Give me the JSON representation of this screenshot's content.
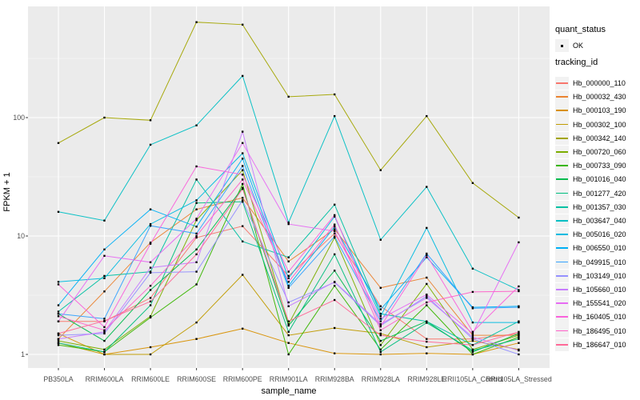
{
  "chart": {
    "y_axis": {
      "title": "FPKM + 1",
      "tick_labels": [
        "1",
        "10",
        "100"
      ]
    },
    "x_axis": {
      "title": "sample_name"
    },
    "legend": {
      "quant_status": {
        "title": "quant_status",
        "items": [
          {
            "label": "OK"
          }
        ]
      },
      "tracking_id": {
        "title": "tracking_id"
      }
    },
    "colors": {
      "panel_background": "#EBEBEB",
      "grid": "#FFFFFF",
      "point": "#000000",
      "axis_text": "#4d4d4d",
      "legend_key_background": "#F2F2F2"
    }
  },
  "chart_data": {
    "type": "line",
    "x_categories": [
      "PB350LA",
      "RRIM600LA",
      "RRIM600LE",
      "RRIM600SE",
      "RRIM600PE",
      "RRIM901LA",
      "RRIM928BA",
      "RRIM928LA",
      "RRIM928LE",
      "RRII105LA_Control",
      "RRII105LA_Stressed"
    ],
    "xlabel": "sample_name",
    "ylabel": "FPKM + 1",
    "y_scale": "log10",
    "y_major_ticks": [
      1,
      10,
      100
    ],
    "y_minor_ticks": [
      3.162,
      31.62,
      316.2
    ],
    "ylim": [
      0.95,
      870
    ],
    "grid": "on",
    "legend_position": "right",
    "point_shape": "square",
    "series": [
      {
        "name": "Hb_000000_110",
        "color": "#F8766D",
        "values": [
          1.9,
          1.9,
          3.0,
          9.7,
          12.1,
          4.6,
          10.5,
          2.55,
          1.35,
          1.35,
          1.5
        ]
      },
      {
        "name": "Hb_000032_430",
        "color": "#EA8331",
        "values": [
          1.35,
          3.4,
          8.8,
          16.8,
          21,
          6.1,
          11.4,
          3.65,
          4.45,
          1.45,
          1.45
        ]
      },
      {
        "name": "Hb_000103_190",
        "color": "#D89000",
        "values": [
          1.5,
          1.0,
          1.15,
          1.35,
          1.65,
          1.25,
          1.02,
          1.0,
          1.02,
          1.0,
          1.25
        ]
      },
      {
        "name": "Hb_000302_100",
        "color": "#C09B00",
        "values": [
          1.25,
          1.0,
          1.0,
          1.86,
          4.7,
          1.45,
          1.67,
          1.5,
          1.15,
          1.3,
          1.1
        ]
      },
      {
        "name": "Hb_000342_140",
        "color": "#A3A500",
        "values": [
          61,
          100,
          95,
          640,
          610,
          150,
          157,
          36,
          103,
          28,
          14.3
        ]
      },
      {
        "name": "Hb_000720_060",
        "color": "#7CAE00",
        "values": [
          1.3,
          1.1,
          2.1,
          13.6,
          36,
          1.8,
          9.7,
          1.2,
          3.94,
          1.1,
          1.45
        ]
      },
      {
        "name": "Hb_000733_090",
        "color": "#39B600",
        "values": [
          1.2,
          1.05,
          2.05,
          3.9,
          27.5,
          1.0,
          3.8,
          1.1,
          2.6,
          1.0,
          1.4
        ]
      },
      {
        "name": "Hb_001016_040",
        "color": "#00BB4E",
        "values": [
          2.2,
          1.3,
          3.5,
          7.7,
          25.5,
          1.75,
          5.1,
          1.3,
          1.9,
          1.05,
          1.5
        ]
      },
      {
        "name": "Hb_001277_420",
        "color": "#00BF7D",
        "values": [
          1.25,
          1.05,
          2.6,
          19,
          19.5,
          1.55,
          7.0,
          1.05,
          1.85,
          1.08,
          1.35
        ]
      },
      {
        "name": "Hb_001357_030",
        "color": "#00C1A3",
        "values": [
          2.3,
          4.6,
          5.0,
          30,
          9.0,
          6.6,
          18.4,
          2.2,
          1.9,
          1.2,
          1.9
        ]
      },
      {
        "name": "Hb_003647_040",
        "color": "#00BFC4",
        "values": [
          16,
          13.5,
          59,
          86,
          225,
          13,
          103,
          9.3,
          26,
          5.3,
          3.5
        ]
      },
      {
        "name": "Hb_005016_020",
        "color": "#00BAE0",
        "values": [
          4.1,
          4.4,
          12.6,
          20,
          50,
          4.4,
          14.6,
          2.1,
          11.7,
          1.86,
          1.86
        ]
      },
      {
        "name": "Hb_006550_010",
        "color": "#00B0F6",
        "values": [
          2.6,
          7.7,
          16.8,
          12,
          45,
          3.8,
          12,
          2.4,
          6.6,
          2.5,
          2.55
        ]
      },
      {
        "name": "Hb_049915_010",
        "color": "#35A2FF",
        "values": [
          2.2,
          2.0,
          12.2,
          10.5,
          39,
          3.65,
          9.9,
          1.9,
          7.1,
          2.45,
          2.5
        ]
      },
      {
        "name": "Hb_103149_010",
        "color": "#9590FF",
        "values": [
          1.45,
          1.5,
          4.9,
          5.0,
          20,
          2.75,
          4.06,
          1.75,
          3.1,
          1.35,
          1.0
        ]
      },
      {
        "name": "Hb_105660_010",
        "color": "#C77CFF",
        "values": [
          1.35,
          1.55,
          5.4,
          6.0,
          76,
          2.55,
          4.1,
          1.8,
          3.0,
          1.4,
          1.08
        ]
      },
      {
        "name": "Hb_155541_020",
        "color": "#E76BF3",
        "values": [
          1.9,
          6.8,
          6.0,
          14,
          61,
          12.6,
          11,
          2.0,
          3.2,
          1.5,
          8.85
        ]
      },
      {
        "name": "Hb_160405_010",
        "color": "#FA62DB",
        "values": [
          3.9,
          1.7,
          8.6,
          38.7,
          33,
          5.0,
          15,
          1.72,
          6.9,
          1.55,
          3.75
        ]
      },
      {
        "name": "Hb_186495_010",
        "color": "#FF61C9",
        "values": [
          2.1,
          1.6,
          3.8,
          10,
          30,
          4.1,
          12.5,
          1.6,
          2.75,
          3.37,
          3.42
        ]
      },
      {
        "name": "Hb_186647_010",
        "color": "#FF6A98",
        "values": [
          1.5,
          1.92,
          2.8,
          7.0,
          25,
          1.9,
          2.88,
          1.45,
          1.28,
          1.2,
          1.55
        ]
      }
    ]
  }
}
